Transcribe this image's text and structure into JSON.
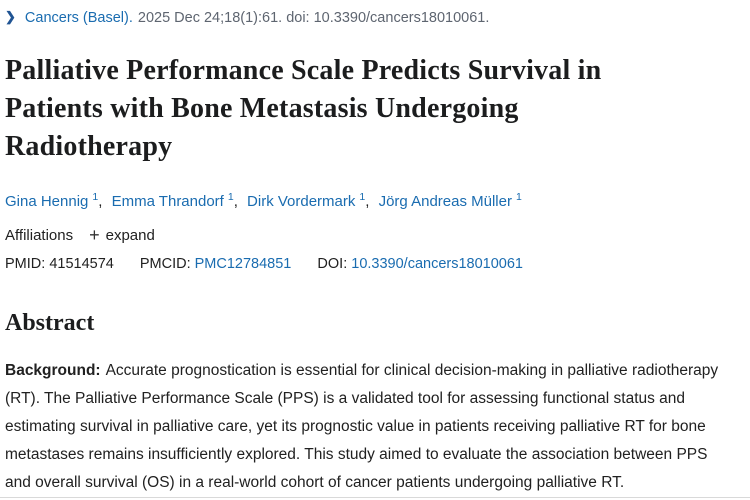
{
  "citation": {
    "chevron_icon": "❯",
    "journal_link": "Cancers (Basel).",
    "rest": "2025 Dec 24;18(1):61. doi: 10.3390/cancers18010061."
  },
  "title": {
    "lines": [
      "Palliative Performance Scale Predicts Survival in",
      "Patients with Bone Metastasis Undergoing",
      "Radiotherapy"
    ]
  },
  "authors": [
    {
      "name": "Gina Hennig",
      "sup": "1"
    },
    {
      "name": "Emma Thrandorf",
      "sup": "1"
    },
    {
      "name": "Dirk Vordermark",
      "sup": "1"
    },
    {
      "name": "Jörg Andreas Müller",
      "sup": "1"
    }
  ],
  "author_separator": ",",
  "affiliations": {
    "label": "Affiliations",
    "expand_icon": "+",
    "expand_label": "expand"
  },
  "identifiers": {
    "pmid_label": "PMID:",
    "pmid_value": "41514574",
    "pmcid_label": "PMCID:",
    "pmcid_value": "PMC12784851",
    "doi_label": "DOI:",
    "doi_value": "10.3390/cancers18010061"
  },
  "abstract": {
    "heading": "Abstract",
    "background_label": "Background:",
    "background_text": "Accurate prognostication is essential for clinical decision-making in palliative radiotherapy (RT). The Palliative Performance Scale (PPS) is a validated tool for assessing functional status and estimating survival in palliative care, yet its prognostic value in patients receiving palliative RT for bone metastases remains insufficiently explored. This study aimed to evaluate the association between PPS and overall survival (OS) in a real-world cohort of cancer patients undergoing palliative RT."
  },
  "colors": {
    "link_blue": "#1a6cb0",
    "chevron_navy": "#205493",
    "text_dark": "#212121",
    "citation_gray": "#5e6570",
    "divider_gray": "#d9d9d9"
  }
}
